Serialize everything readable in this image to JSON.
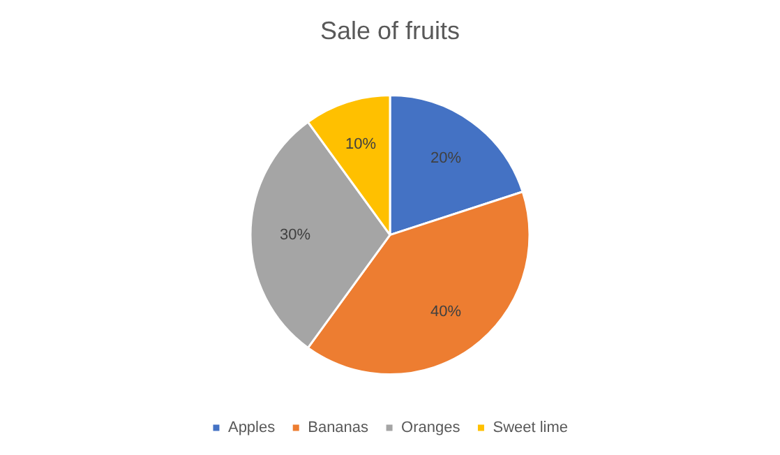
{
  "chart_data": {
    "type": "pie",
    "title": "Sale of fruits",
    "categories": [
      "Apples",
      "Bananas",
      "Oranges",
      "Sweet lime"
    ],
    "values": [
      20,
      40,
      30,
      10
    ],
    "colors": [
      "#4472c4",
      "#ed7d31",
      "#a5a5a5",
      "#ffc000"
    ],
    "value_labels": [
      "20%",
      "40%",
      "30%",
      "10%"
    ],
    "legend": "bottom"
  }
}
